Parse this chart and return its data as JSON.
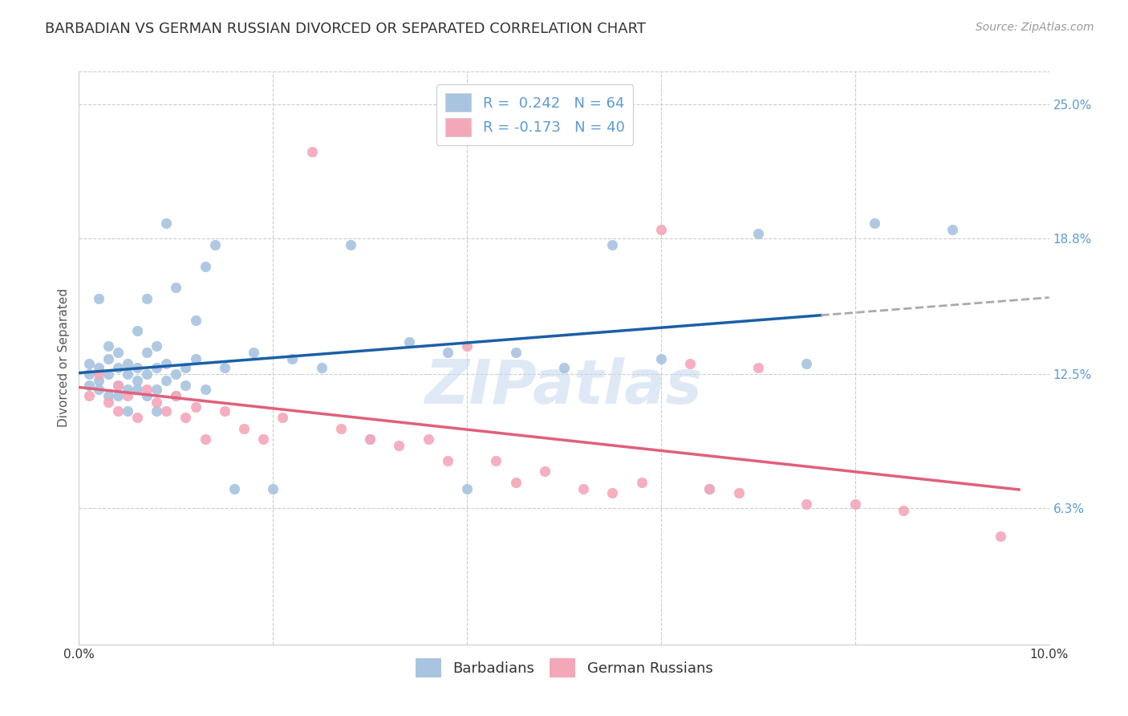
{
  "title": "BARBADIAN VS GERMAN RUSSIAN DIVORCED OR SEPARATED CORRELATION CHART",
  "source": "Source: ZipAtlas.com",
  "ylabel": "Divorced or Separated",
  "xlim": [
    0.0,
    0.1
  ],
  "ylim": [
    0.0,
    0.265
  ],
  "ytick_positions": [
    0.063,
    0.125,
    0.188,
    0.25
  ],
  "ytick_labels": [
    "6.3%",
    "12.5%",
    "18.8%",
    "25.0%"
  ],
  "barbadian_color": "#a8c4e0",
  "german_russian_color": "#f4a7b9",
  "trend_barbadian_color": "#1a5fa8",
  "trend_german_russian_color": "#e0607a",
  "trend_dashed_color": "#aaaaaa",
  "background_color": "#ffffff",
  "grid_color": "#cccccc",
  "tick_color": "#5b9bd5",
  "title_fontsize": 13,
  "axis_label_fontsize": 11,
  "tick_fontsize": 11,
  "legend_fontsize": 13,
  "source_fontsize": 10,
  "watermark": "ZIPatlas",
  "barbadian_x": [
    0.001,
    0.001,
    0.001,
    0.002,
    0.002,
    0.002,
    0.002,
    0.003,
    0.003,
    0.003,
    0.003,
    0.004,
    0.004,
    0.004,
    0.004,
    0.005,
    0.005,
    0.005,
    0.005,
    0.006,
    0.006,
    0.006,
    0.006,
    0.007,
    0.007,
    0.007,
    0.007,
    0.008,
    0.008,
    0.008,
    0.008,
    0.009,
    0.009,
    0.009,
    0.01,
    0.01,
    0.01,
    0.011,
    0.011,
    0.012,
    0.012,
    0.013,
    0.013,
    0.014,
    0.015,
    0.016,
    0.018,
    0.02,
    0.022,
    0.025,
    0.028,
    0.03,
    0.034,
    0.038,
    0.04,
    0.045,
    0.05,
    0.055,
    0.06,
    0.065,
    0.07,
    0.075,
    0.082,
    0.09
  ],
  "barbadian_y": [
    0.125,
    0.13,
    0.12,
    0.16,
    0.128,
    0.118,
    0.122,
    0.132,
    0.125,
    0.115,
    0.138,
    0.12,
    0.128,
    0.115,
    0.135,
    0.118,
    0.125,
    0.13,
    0.108,
    0.122,
    0.128,
    0.118,
    0.145,
    0.115,
    0.125,
    0.135,
    0.16,
    0.118,
    0.128,
    0.138,
    0.108,
    0.122,
    0.13,
    0.195,
    0.115,
    0.125,
    0.165,
    0.12,
    0.128,
    0.132,
    0.15,
    0.118,
    0.175,
    0.185,
    0.128,
    0.072,
    0.135,
    0.072,
    0.132,
    0.128,
    0.185,
    0.095,
    0.14,
    0.135,
    0.072,
    0.135,
    0.128,
    0.185,
    0.132,
    0.072,
    0.19,
    0.13,
    0.195,
    0.192
  ],
  "german_russian_x": [
    0.001,
    0.002,
    0.003,
    0.004,
    0.004,
    0.005,
    0.006,
    0.007,
    0.008,
    0.009,
    0.01,
    0.011,
    0.012,
    0.013,
    0.015,
    0.017,
    0.019,
    0.021,
    0.024,
    0.027,
    0.03,
    0.033,
    0.036,
    0.038,
    0.04,
    0.043,
    0.045,
    0.048,
    0.052,
    0.055,
    0.058,
    0.06,
    0.063,
    0.065,
    0.068,
    0.07,
    0.075,
    0.08,
    0.085,
    0.095
  ],
  "german_russian_y": [
    0.115,
    0.125,
    0.112,
    0.12,
    0.108,
    0.115,
    0.105,
    0.118,
    0.112,
    0.108,
    0.115,
    0.105,
    0.11,
    0.095,
    0.108,
    0.1,
    0.095,
    0.105,
    0.228,
    0.1,
    0.095,
    0.092,
    0.095,
    0.085,
    0.138,
    0.085,
    0.075,
    0.08,
    0.072,
    0.07,
    0.075,
    0.192,
    0.13,
    0.072,
    0.07,
    0.128,
    0.065,
    0.065,
    0.062,
    0.05
  ]
}
